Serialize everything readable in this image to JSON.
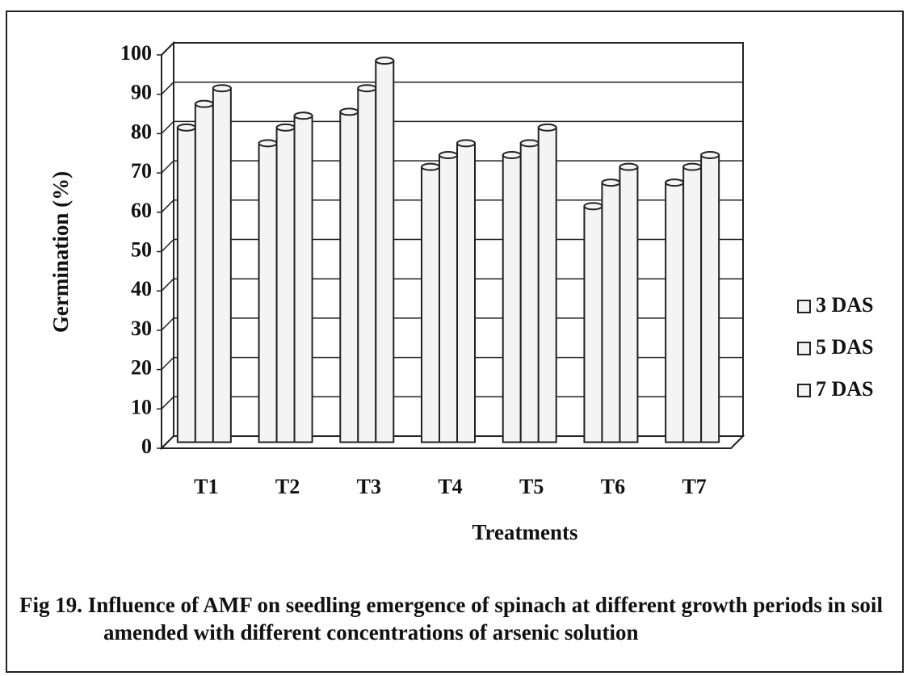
{
  "chart_data": {
    "type": "bar",
    "title": "Fig 19. Influence of AMF on seedling emergence of spinach at different growth periods in soil amended with different concentrations of arsenic solution",
    "xlabel": "Treatments",
    "ylabel": "Germination (%)",
    "categories": [
      "T1",
      "T2",
      "T3",
      "T4",
      "T5",
      "T6",
      "T7"
    ],
    "series": [
      {
        "name": "3 DAS",
        "color": "#f4f4f4",
        "values": [
          80,
          76,
          84,
          70,
          73,
          60,
          66
        ]
      },
      {
        "name": "5 DAS",
        "color": "#f4f4f4",
        "values": [
          86,
          80,
          90,
          73,
          76,
          66,
          70
        ]
      },
      {
        "name": "7 DAS",
        "color": "#f4f4f4",
        "values": [
          90,
          83,
          97,
          76,
          80,
          70,
          73
        ]
      }
    ],
    "ylim": [
      0,
      100
    ],
    "yticks": [
      0,
      10,
      20,
      30,
      40,
      50,
      60,
      70,
      80,
      90,
      100
    ],
    "grid": true,
    "legend": "right"
  }
}
